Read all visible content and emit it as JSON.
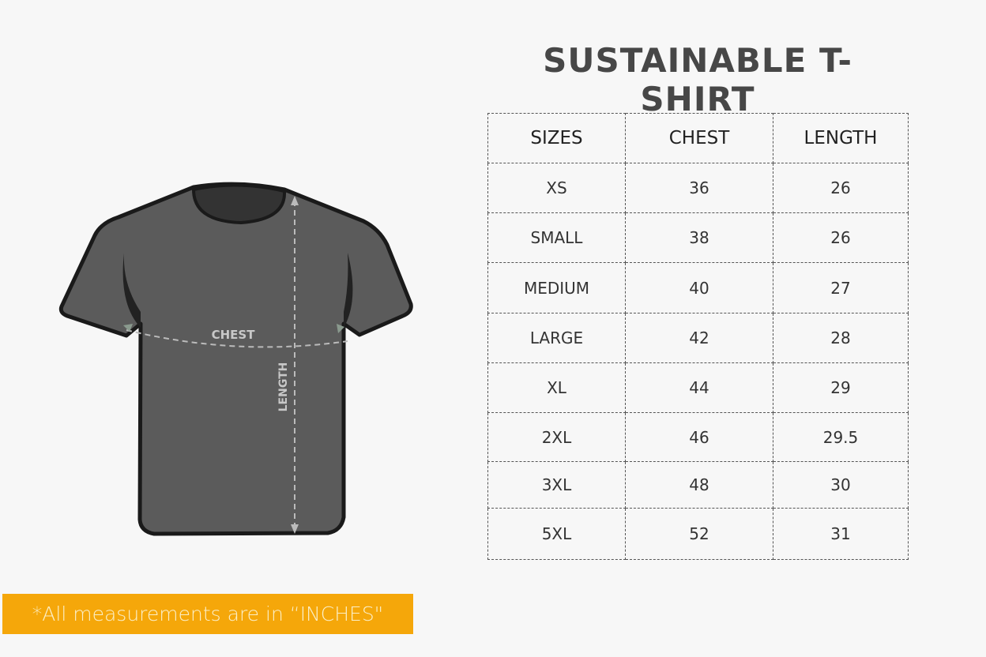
{
  "title": "SUSTAINABLE T-SHIRT",
  "diagram": {
    "chest_label": "CHEST",
    "length_label": "LENGTH",
    "shirt_color": "#5b5b5b"
  },
  "table": {
    "headers": [
      "SIZES",
      "CHEST",
      "LENGTH"
    ],
    "rows": [
      [
        "XS",
        "36",
        "26"
      ],
      [
        "SMALL",
        "38",
        "26"
      ],
      [
        "MEDIUM",
        "40",
        "27"
      ],
      [
        "LARGE",
        "42",
        "28"
      ],
      [
        "XL",
        "44",
        "29"
      ],
      [
        "2XL",
        "46",
        "29.5"
      ],
      [
        "3XL",
        "48",
        "30"
      ],
      [
        "5XL",
        "52",
        "31"
      ]
    ]
  },
  "note": {
    "text": "*All measurements are in “INCHES\"",
    "background": "#f5a70a"
  }
}
